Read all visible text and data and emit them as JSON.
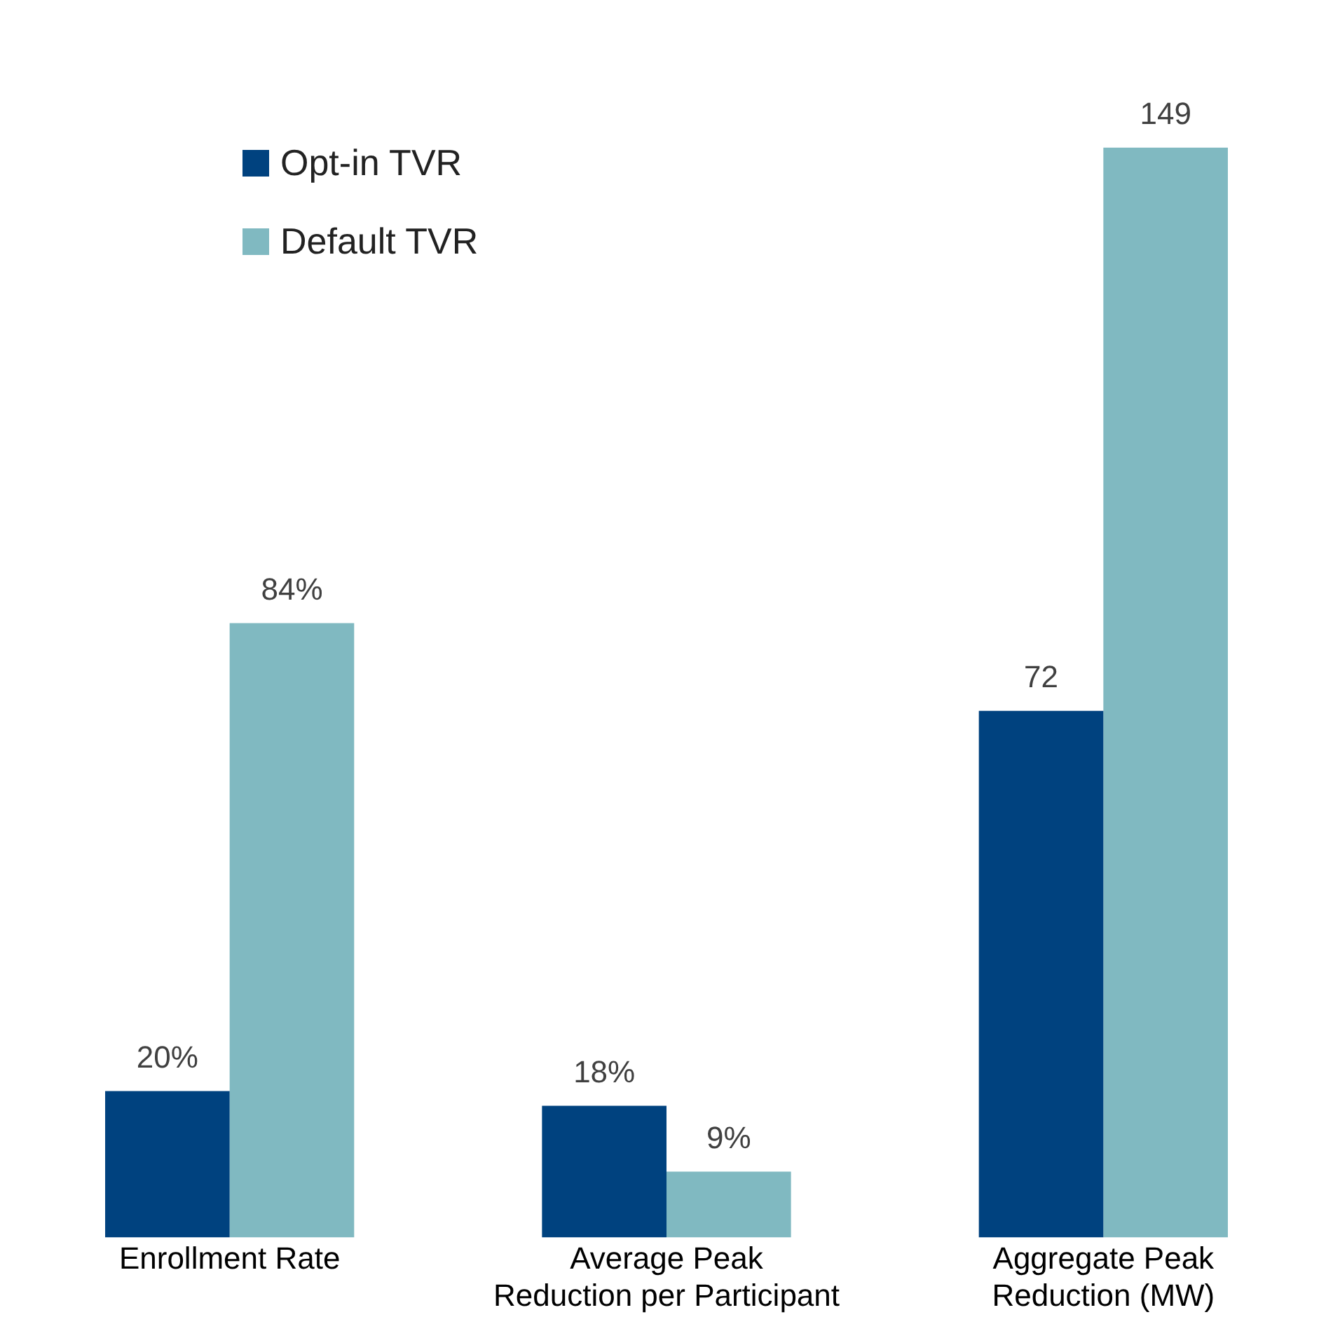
{
  "chart_data": {
    "type": "bar",
    "categories": [
      "Enrollment Rate",
      "Average Peak\nReduction per Participant",
      "Aggregate Peak\nReduction (MW)"
    ],
    "series": [
      {
        "name": "Opt-in TVR",
        "color": "#00427f",
        "values": [
          20,
          18,
          72
        ],
        "value_labels": [
          "20%",
          "18%",
          "72"
        ]
      },
      {
        "name": "Default TVR",
        "color": "#80b9c1",
        "values": [
          84,
          9,
          149
        ],
        "value_labels": [
          "84%",
          "9%",
          "149"
        ]
      }
    ],
    "legend": "top left",
    "grid": false
  }
}
